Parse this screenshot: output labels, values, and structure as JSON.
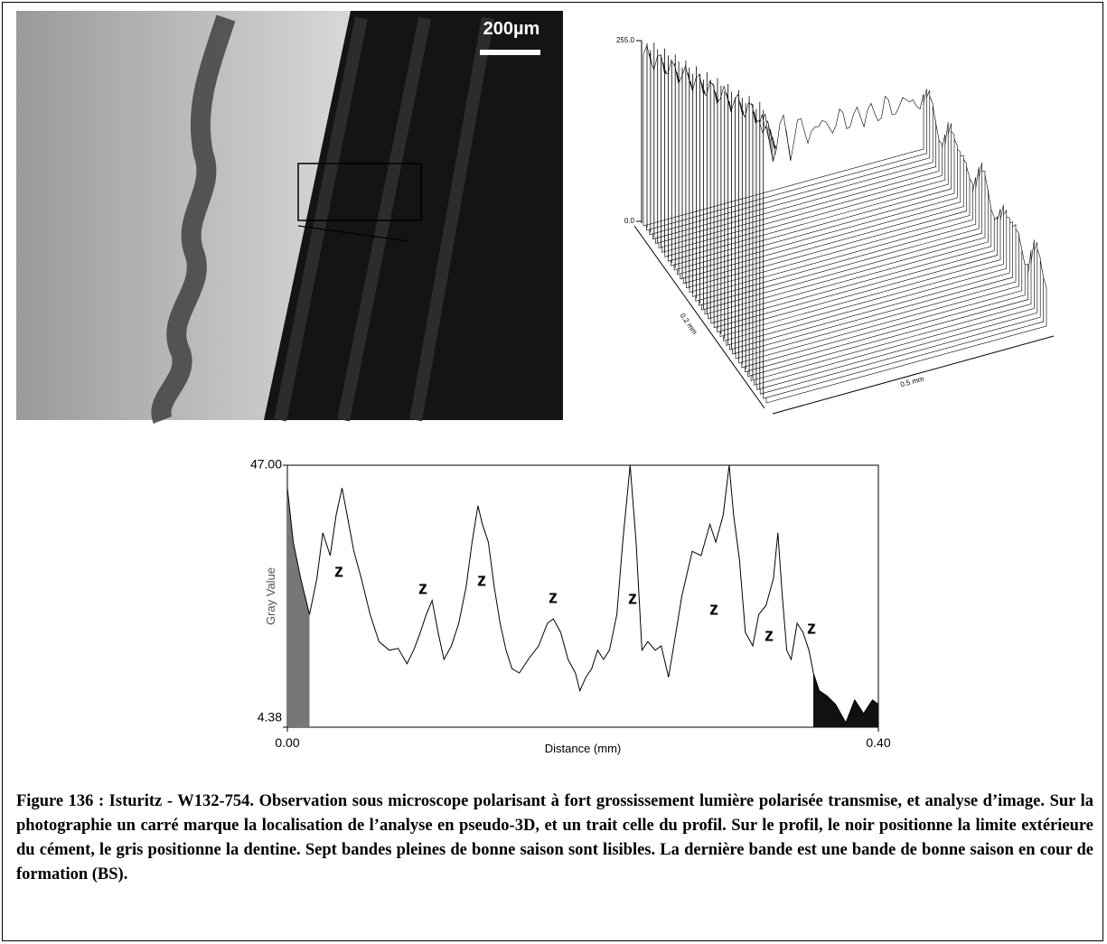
{
  "photo": {
    "scale_bar": "200µm"
  },
  "pseudo3d": {
    "z_top": "255.0",
    "z_bottom": "0.0",
    "depth_label": "0.2 mm",
    "width_label": "0.5 mm"
  },
  "chart_data": {
    "type": "line",
    "xlabel": "Distance (mm)",
    "ylabel": "Gray Value",
    "color": "#000000",
    "xlim": [
      0,
      0.4
    ],
    "ylim": [
      4.38,
      47
    ],
    "xticks": [
      {
        "value": 0,
        "label": "0.00"
      },
      {
        "value": 0.4,
        "label": "0.40"
      }
    ],
    "yticks": [
      4.38,
      {
        "value": 47,
        "label": "47.00"
      }
    ],
    "x": [
      0,
      0.004,
      0.009,
      0.015,
      0.02,
      0.024,
      0.029,
      0.033,
      0.037,
      0.041,
      0.045,
      0.05,
      0.056,
      0.062,
      0.069,
      0.075,
      0.081,
      0.086,
      0.09,
      0.094,
      0.098,
      0.102,
      0.106,
      0.111,
      0.116,
      0.121,
      0.125,
      0.129,
      0.132,
      0.136,
      0.14,
      0.144,
      0.148,
      0.152,
      0.157,
      0.163,
      0.17,
      0.176,
      0.18,
      0.185,
      0.19,
      0.195,
      0.198,
      0.202,
      0.206,
      0.21,
      0.214,
      0.218,
      0.223,
      0.227,
      0.232,
      0.236,
      0.24,
      0.244,
      0.249,
      0.253,
      0.258,
      0.263,
      0.267,
      0.274,
      0.28,
      0.286,
      0.29,
      0.295,
      0.299,
      0.302,
      0.306,
      0.31,
      0.315,
      0.319,
      0.324,
      0.329,
      0.332,
      0.335,
      0.338,
      0.341,
      0.345,
      0.349,
      0.353,
      0.356,
      0.36,
      0.365,
      0.371,
      0.378,
      0.384,
      0.39,
      0.396,
      0.4
    ],
    "values": [
      43.3,
      34.5,
      28.6,
      22.7,
      28.6,
      36.0,
      32.3,
      38.9,
      43.3,
      38.2,
      33.0,
      28.6,
      22.7,
      18.3,
      16.9,
      17.2,
      14.7,
      17.2,
      19.8,
      22.7,
      25.0,
      19.8,
      15.4,
      17.6,
      21.3,
      27.2,
      34.5,
      40.4,
      37.4,
      34.5,
      27.2,
      21.3,
      16.9,
      13.9,
      13.2,
      15.4,
      17.6,
      21.3,
      22.0,
      19.8,
      15.4,
      13.2,
      10.3,
      12.5,
      13.9,
      16.9,
      15.4,
      16.9,
      22.7,
      34.5,
      47,
      34.5,
      16.9,
      18.3,
      16.9,
      17.6,
      12.5,
      19.8,
      25.7,
      33.0,
      32.3,
      37.4,
      34.5,
      38.9,
      47,
      38.9,
      31.6,
      19.8,
      17.6,
      22.7,
      24.2,
      28.6,
      36.0,
      25.7,
      16.9,
      15.4,
      21.3,
      19.8,
      16.9,
      13.2,
      10.3,
      9.5,
      8.1,
      5.1,
      8.8,
      6.6,
      8.8,
      8.1
    ],
    "shaded": [
      {
        "from": 0,
        "to": 0.015,
        "color": "#777777"
      },
      {
        "from": 0.356,
        "to": 0.4,
        "color": "#111111"
      }
    ],
    "annotations": [
      "z",
      "z",
      "z",
      "z",
      "z",
      "z",
      "z",
      "z"
    ]
  },
  "caption": "Figure 136 : Isturitz - W132-754. Observation sous microscope polarisant à fort grossissement lumière polarisée transmise, et analyse d’image. Sur la photographie un carré marque la localisation de l’analyse en pseudo-3D, et un trait celle du profil. Sur le profil, le noir positionne la limite extérieure du cément, le gris positionne la dentine. Sept bandes pleines de bonne saison sont lisibles. La dernière bande est une bande de bonne saison en cour de formation (BS)."
}
